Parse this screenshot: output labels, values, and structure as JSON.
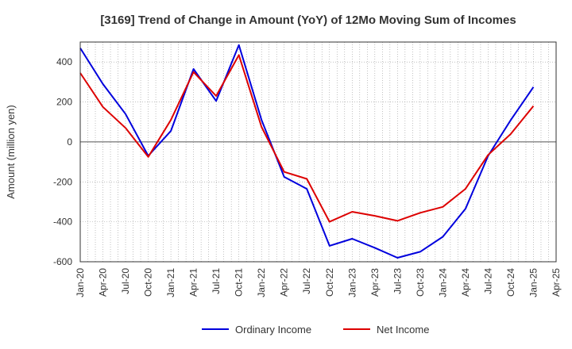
{
  "chart_data": {
    "type": "line",
    "title": "[3169]  Trend of Change in Amount (YoY) of 12Mo Moving Sum of Incomes",
    "xlabel": "",
    "ylabel": "Amount (million yen)",
    "ylim": [
      -600,
      500
    ],
    "yticks": [
      -600,
      -400,
      -200,
      0,
      200,
      400
    ],
    "categories": [
      "Jan-20",
      "Apr-20",
      "Jul-20",
      "Oct-20",
      "Jan-21",
      "Apr-21",
      "Jul-21",
      "Oct-21",
      "Jan-22",
      "Apr-22",
      "Jul-22",
      "Oct-22",
      "Jan-23",
      "Apr-23",
      "Jul-23",
      "Oct-23",
      "Jan-24",
      "Apr-24",
      "Jul-24",
      "Oct-24",
      "Jan-25",
      "Apr-25"
    ],
    "grid": true,
    "legend_position": "bottom",
    "series": [
      {
        "name": "Ordinary Income",
        "color": "#0000dd",
        "values": [
          470,
          290,
          140,
          -70,
          55,
          365,
          205,
          485,
          110,
          -175,
          -235,
          -520,
          -485,
          -530,
          -580,
          -550,
          -475,
          -335,
          -70,
          110,
          275,
          null
        ]
      },
      {
        "name": "Net Income",
        "color": "#dd0000",
        "values": [
          345,
          175,
          70,
          -75,
          110,
          350,
          230,
          435,
          75,
          -150,
          -185,
          -400,
          -350,
          -370,
          -395,
          -355,
          -325,
          -235,
          -65,
          40,
          180,
          null
        ]
      }
    ]
  }
}
